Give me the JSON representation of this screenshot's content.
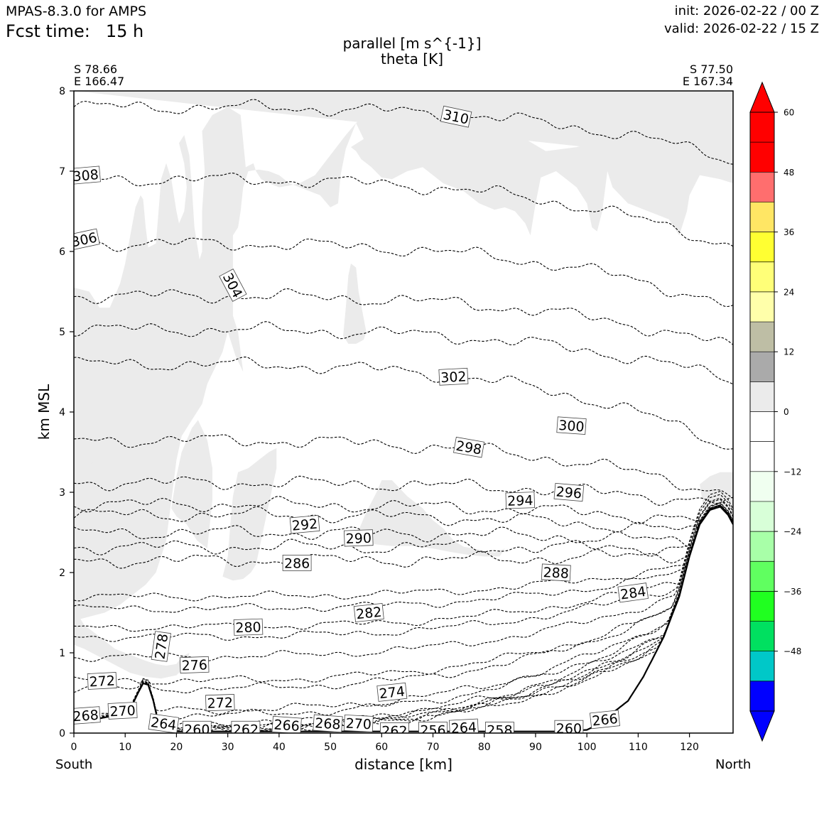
{
  "header": {
    "model": "MPAS-8.3.0 for AMPS",
    "fcst_label": "Fcst time:",
    "fcst_value": "15 h",
    "init": "init: 2026-02-22 / 00 Z",
    "valid": "valid: 2026-02-22 / 15 Z"
  },
  "endpoints": {
    "left_lat": "S 78.66",
    "left_lon": "E 166.47",
    "right_lat": "S 77.50",
    "right_lon": "E 167.34",
    "south": "South",
    "north": "North"
  },
  "chart_data": {
    "type": "contour",
    "title": [
      "parallel [m s^{-1}]",
      "theta [K]"
    ],
    "xlabel": "distance [km]",
    "ylabel": "km MSL",
    "xlim": [
      0,
      128.5
    ],
    "ylim": [
      0,
      8
    ],
    "xticks": [
      0,
      10,
      20,
      30,
      40,
      50,
      60,
      70,
      80,
      90,
      100,
      110,
      120
    ],
    "yticks": [
      0,
      1,
      2,
      3,
      4,
      5,
      6,
      7,
      8
    ],
    "colorbar": {
      "min": -60,
      "max": 60,
      "step": 6,
      "tick_values": [
        -48,
        -36,
        -24,
        -12,
        0,
        12,
        24,
        36,
        48,
        60
      ],
      "tick_labels": [
        "−48",
        "−36",
        "−24",
        "−12",
        "0",
        "12",
        "24",
        "36",
        "48",
        "60"
      ],
      "under_color": "#0000ff",
      "over_color": "#ff0000",
      "colors": [
        "#0000ff",
        "#00c8c8",
        "#00e060",
        "#20ff20",
        "#60ff60",
        "#a8ffa8",
        "#d8ffd8",
        "#f0fff0",
        "#ffffff",
        "#ffffff",
        "#ebebeb",
        "#aaaaaa",
        "#bebea5",
        "#ffffaa",
        "#ffff78",
        "#ffff32",
        "#ffe664",
        "#ff6e6e",
        "#ff0000",
        "#ff0000"
      ]
    },
    "shaded_region_color": "#ebebeb",
    "terrain": [
      [
        0,
        0.15
      ],
      [
        4,
        0.17
      ],
      [
        8,
        0.22
      ],
      [
        11,
        0.3
      ],
      [
        12.5,
        0.5
      ],
      [
        13.5,
        0.62
      ],
      [
        14.5,
        0.6
      ],
      [
        15.5,
        0.4
      ],
      [
        16.5,
        0.12
      ],
      [
        17.5,
        0.04
      ],
      [
        20,
        0.02
      ],
      [
        40,
        0.02
      ],
      [
        60,
        0.02
      ],
      [
        80,
        0.02
      ],
      [
        95,
        0.02
      ],
      [
        100,
        0.04
      ],
      [
        102,
        0.1
      ],
      [
        105,
        0.25
      ],
      [
        108,
        0.4
      ],
      [
        111,
        0.7
      ],
      [
        115,
        1.2
      ],
      [
        118,
        1.7
      ],
      [
        120,
        2.2
      ],
      [
        122,
        2.6
      ],
      [
        124,
        2.78
      ],
      [
        126,
        2.82
      ],
      [
        127.5,
        2.72
      ],
      [
        128.5,
        2.6
      ]
    ],
    "theta_contours": [
      {
        "value": 310,
        "base": 7.8,
        "right": 7.15,
        "label_x": 74.5,
        "label_y": 7.68,
        "angle": 12
      },
      {
        "value": 308,
        "base": 6.9,
        "right": 6.05,
        "label_x": 2.3,
        "label_y": 6.95,
        "angle": -5
      },
      {
        "value": 306,
        "base": 6.1,
        "right": 5.3,
        "label_x": 2,
        "label_y": 6.15,
        "angle": -12
      },
      {
        "value": 304,
        "base": 5.45,
        "right": 4.8,
        "label_x": 31,
        "label_y": 5.58,
        "angle": 62
      },
      {
        "value": 302,
        "base": 5.03,
        "right": 4.4,
        "label_x": 74,
        "label_y": 4.44,
        "angle": -3
      },
      {
        "value": 300,
        "base": 4.6,
        "right": 3.55,
        "label_x": 97,
        "label_y": 3.83,
        "angle": 4
      },
      {
        "value": 298,
        "base": 3.65,
        "right": 2.95,
        "label_x": 77,
        "label_y": 3.56,
        "angle": 10
      },
      {
        "value": 296,
        "base": 3.12,
        "right": 2.85,
        "label_x": 96.5,
        "label_y": 3.0,
        "angle": 5
      },
      {
        "value": 294,
        "base": 2.85,
        "right": 2.6,
        "label_x": 87,
        "label_y": 2.9,
        "angle": -2
      },
      {
        "value": 292,
        "base": 2.72,
        "right": 2.45,
        "label_x": 45,
        "label_y": 2.6,
        "angle": -5
      },
      {
        "value": 290,
        "base": 2.5,
        "right": 2.35,
        "label_x": 55.5,
        "label_y": 2.43,
        "angle": -2
      },
      {
        "value": 286,
        "base": 2.15,
        "right": 2.25,
        "label_x": 43.5,
        "label_y": 2.12,
        "angle": 0
      },
      {
        "value": 288,
        "base": 2.32,
        "right": 2.3,
        "label_x": 94,
        "label_y": 2.0,
        "angle": 3
      },
      {
        "value": 284,
        "base": 1.7,
        "right": 2.2,
        "label_x": 109,
        "label_y": 1.75,
        "angle": -8
      },
      {
        "value": 282,
        "base": 1.55,
        "right": 2.15,
        "label_x": 57.5,
        "label_y": 1.5,
        "angle": -6
      },
      {
        "value": 280,
        "base": 1.32,
        "right": 2.1,
        "label_x": 34,
        "label_y": 1.32,
        "angle": -2
      },
      {
        "value": 278,
        "base": 1.2,
        "right": 2.05,
        "label_x": 17,
        "label_y": 1.08,
        "angle": -82
      },
      {
        "value": 276,
        "base": 0.95,
        "right": 2.0,
        "label_x": 23.5,
        "label_y": 0.85,
        "angle": -2
      },
      {
        "value": 274,
        "base": 0.55,
        "right": 1.95,
        "label_x": 62,
        "label_y": 0.51,
        "angle": -6
      },
      {
        "value": 272,
        "base": 0.65,
        "right": 1.9,
        "label_x": 28.5,
        "label_y": 0.38,
        "angle": -2
      },
      {
        "value": 272,
        "base": 0.65,
        "right": 1.9,
        "label_x": 5.5,
        "label_y": 0.65,
        "angle": -3
      },
      {
        "value": 270,
        "base": 0.28,
        "right": 1.9,
        "label_x": 9.5,
        "label_y": 0.28,
        "angle": -3
      },
      {
        "value": 270,
        "base": 0.28,
        "right": 1.9,
        "label_x": 55.5,
        "label_y": 0.12,
        "angle": 3
      },
      {
        "value": 268,
        "base": 0.22,
        "right": 1.85,
        "label_x": 2.3,
        "label_y": 0.22,
        "angle": -4
      },
      {
        "value": 268,
        "base": 0.22,
        "right": 1.85,
        "label_x": 49.5,
        "label_y": 0.12,
        "angle": 4
      },
      {
        "value": 266,
        "base": 0.1,
        "right": 1.8,
        "label_x": 41.5,
        "label_y": 0.1,
        "angle": 4
      },
      {
        "value": 266,
        "base": 0.1,
        "right": 1.8,
        "label_x": 103.5,
        "label_y": 0.17,
        "angle": -6
      },
      {
        "value": 264,
        "base": 0.08,
        "right": 1.75,
        "label_x": 17.5,
        "label_y": 0.12,
        "angle": 8
      },
      {
        "value": 264,
        "base": 0.08,
        "right": 1.75,
        "label_x": 76,
        "label_y": 0.07,
        "angle": -3
      },
      {
        "value": 262,
        "base": 0.05,
        "right": 1.7,
        "label_x": 33.5,
        "label_y": 0.05,
        "angle": 0
      },
      {
        "value": 262,
        "base": 0.05,
        "right": 1.7,
        "label_x": 62.5,
        "label_y": 0.03,
        "angle": 0
      },
      {
        "value": 260,
        "base": 0.05,
        "right": 1.65,
        "label_x": 24,
        "label_y": 0.05,
        "angle": 0
      },
      {
        "value": 260,
        "base": 0.05,
        "right": 1.65,
        "label_x": 96.5,
        "label_y": 0.06,
        "angle": 0
      },
      {
        "value": 258,
        "base": 0.04,
        "right": 1.6,
        "label_x": 83,
        "label_y": 0.04,
        "angle": 0
      },
      {
        "value": 256,
        "base": 0.03,
        "right": 1.55,
        "label_x": 70,
        "label_y": 0.04,
        "angle": 0
      }
    ]
  }
}
